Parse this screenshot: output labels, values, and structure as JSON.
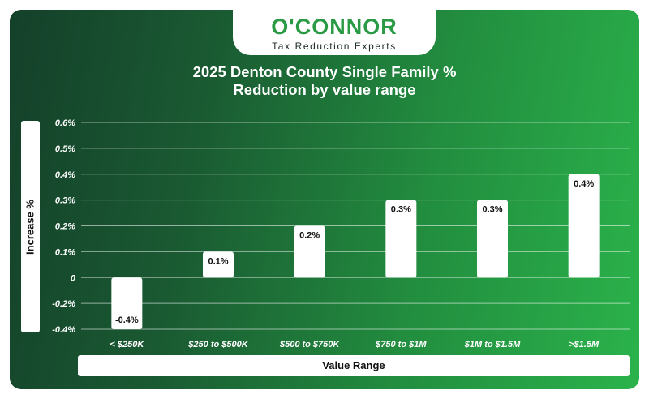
{
  "logo": {
    "name": "O'CONNOR",
    "tagline": "Tax Reduction Experts"
  },
  "colors": {
    "background_dark": "#14402a",
    "background_light": "#2bb34b",
    "bar": "#ffffff",
    "logo_green": "#2a9a45"
  },
  "chart_data": {
    "type": "bar",
    "title_line1": "2025 Denton County Single Family %",
    "title_line2": "Reduction by value range",
    "xlabel": "Value Range",
    "ylabel": "Increase %",
    "categories": [
      "< $250K",
      "$250 to $500K",
      "$500 to $750K",
      "$750 to $1M",
      "$1M to $1.5M",
      ">$1.5M"
    ],
    "values": [
      -0.4,
      0.1,
      0.2,
      0.3,
      0.3,
      0.4
    ],
    "data_labels": [
      "-0.4%",
      "0.1%",
      "0.2%",
      "0.3%",
      "0.3%",
      "0.4%"
    ],
    "ylim": [
      -0.4,
      0.6
    ],
    "yticks": [
      0.6,
      0.5,
      0.4,
      0.3,
      0.2,
      0.1,
      0,
      -0.2,
      -0.4
    ],
    "ytick_labels": [
      "0.6%",
      "0.5%",
      "0.4%",
      "0.3%",
      "0.2%",
      "0.1%",
      "0",
      "-0.2%",
      "-0.4%"
    ],
    "grid": true,
    "legend": "none"
  }
}
